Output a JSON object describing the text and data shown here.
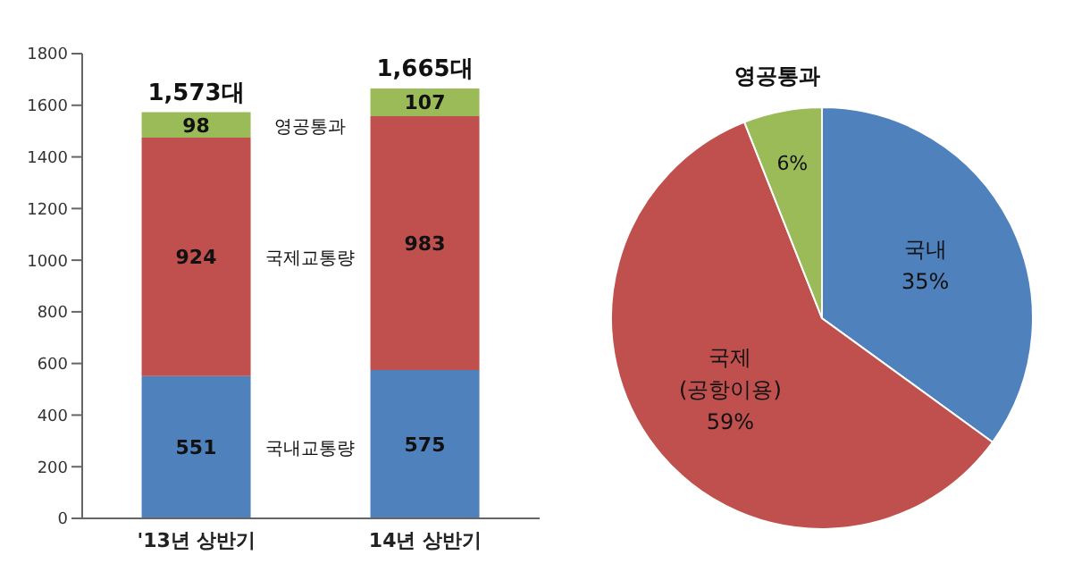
{
  "chart_data": [
    {
      "type": "bar",
      "categories": [
        "'13년 상반기",
        "14년 상반기"
      ],
      "stacked": true,
      "ylim": [
        0,
        1800
      ],
      "yticks": [
        0,
        200,
        400,
        600,
        800,
        1000,
        1200,
        1400,
        1600,
        1800
      ],
      "data_labels": true,
      "totals": [
        "1,573대",
        "1,665대"
      ],
      "legend": false,
      "grid": false,
      "series": [
        {
          "name": "국내교통량",
          "color": "#4f81bd",
          "values": [
            551,
            575
          ]
        },
        {
          "name": "국제교통량",
          "color": "#c0504d",
          "values": [
            924,
            983
          ]
        },
        {
          "name": "영공통과",
          "color": "#9bbb59",
          "values": [
            98,
            107
          ]
        }
      ]
    },
    {
      "type": "pie",
      "categories": [
        "국내",
        "국제\n(공항이용)",
        "영공통과"
      ],
      "values": [
        35,
        59,
        6
      ],
      "colors": [
        "#4f81bd",
        "#c0504d",
        "#9bbb59"
      ],
      "value_labels": [
        "35%",
        "59%",
        "6%"
      ],
      "legend": false
    }
  ]
}
